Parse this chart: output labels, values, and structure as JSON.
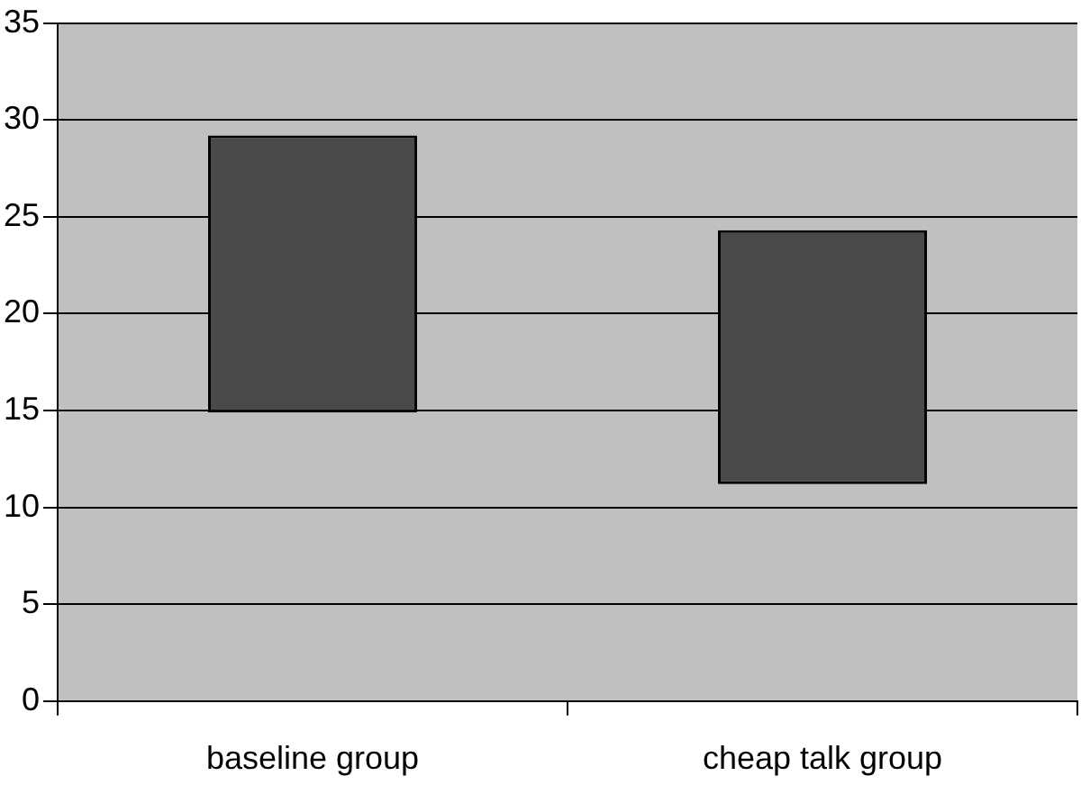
{
  "chart_data": {
    "type": "bar",
    "categories": [
      "baseline group",
      "cheap talk group"
    ],
    "values": [
      14.3,
      13.1
    ],
    "base": [
      14.9,
      11.2
    ],
    "color": "#4a4a4a",
    "ylim": [
      0,
      35
    ],
    "yticks": [
      0,
      5,
      10,
      15,
      20,
      25,
      30,
      35
    ],
    "grid": "y",
    "legend": false
  }
}
